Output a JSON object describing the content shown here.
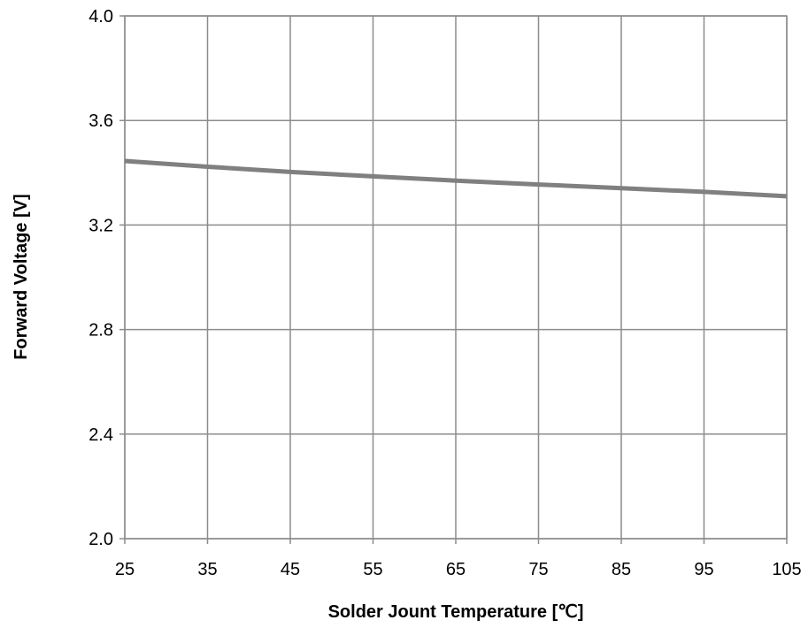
{
  "chart_data": {
    "type": "line",
    "title": "",
    "xlabel": "Solder Jount Temperature [℃]",
    "ylabel": "Forward Voltage [V]",
    "xlim": [
      25,
      105
    ],
    "ylim": [
      2.0,
      4.0
    ],
    "x_ticks": [
      "25",
      "35",
      "45",
      "55",
      "65",
      "75",
      "85",
      "95",
      "105"
    ],
    "y_ticks": [
      "2.0",
      "2.4",
      "2.8",
      "3.2",
      "3.6",
      "4.0"
    ],
    "grid": true,
    "legend": "none",
    "series": [
      {
        "color": "#808080",
        "x": [
          25,
          35,
          45,
          55,
          65,
          75,
          85,
          95,
          105
        ],
        "y": [
          3.445,
          3.423,
          3.403,
          3.386,
          3.37,
          3.355,
          3.341,
          3.327,
          3.31
        ]
      }
    ]
  }
}
